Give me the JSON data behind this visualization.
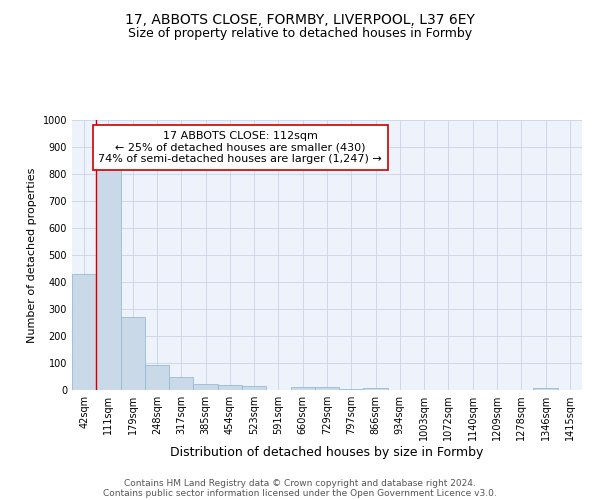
{
  "title": "17, ABBOTS CLOSE, FORMBY, LIVERPOOL, L37 6EY",
  "subtitle": "Size of property relative to detached houses in Formby",
  "xlabel": "Distribution of detached houses by size in Formby",
  "ylabel": "Number of detached properties",
  "bar_color": "#c9d9e8",
  "bar_edge_color": "#8ab4d4",
  "vline_color": "#cc0000",
  "annotation_line1": "17 ABBOTS CLOSE: 112sqm",
  "annotation_line2": "← 25% of detached houses are smaller (430)",
  "annotation_line3": "74% of semi-detached houses are larger (1,247) →",
  "annotation_box_color": "#ffffff",
  "annotation_border_color": "#cc0000",
  "categories": [
    "42sqm",
    "111sqm",
    "179sqm",
    "248sqm",
    "317sqm",
    "385sqm",
    "454sqm",
    "523sqm",
    "591sqm",
    "660sqm",
    "729sqm",
    "797sqm",
    "866sqm",
    "934sqm",
    "1003sqm",
    "1072sqm",
    "1140sqm",
    "1209sqm",
    "1278sqm",
    "1346sqm",
    "1415sqm"
  ],
  "values": [
    430,
    820,
    270,
    92,
    47,
    22,
    17,
    13,
    0,
    10,
    10,
    5,
    8,
    0,
    0,
    0,
    0,
    0,
    0,
    8,
    0
  ],
  "ylim": [
    0,
    1000
  ],
  "yticks": [
    0,
    100,
    200,
    300,
    400,
    500,
    600,
    700,
    800,
    900,
    1000
  ],
  "grid_color": "#c8d4e8",
  "background_color": "#eef2fa",
  "footer_line1": "Contains HM Land Registry data © Crown copyright and database right 2024.",
  "footer_line2": "Contains public sector information licensed under the Open Government Licence v3.0.",
  "title_fontsize": 10,
  "subtitle_fontsize": 9,
  "xlabel_fontsize": 9,
  "ylabel_fontsize": 8,
  "tick_fontsize": 7,
  "annot_fontsize": 8,
  "footer_fontsize": 6.5
}
